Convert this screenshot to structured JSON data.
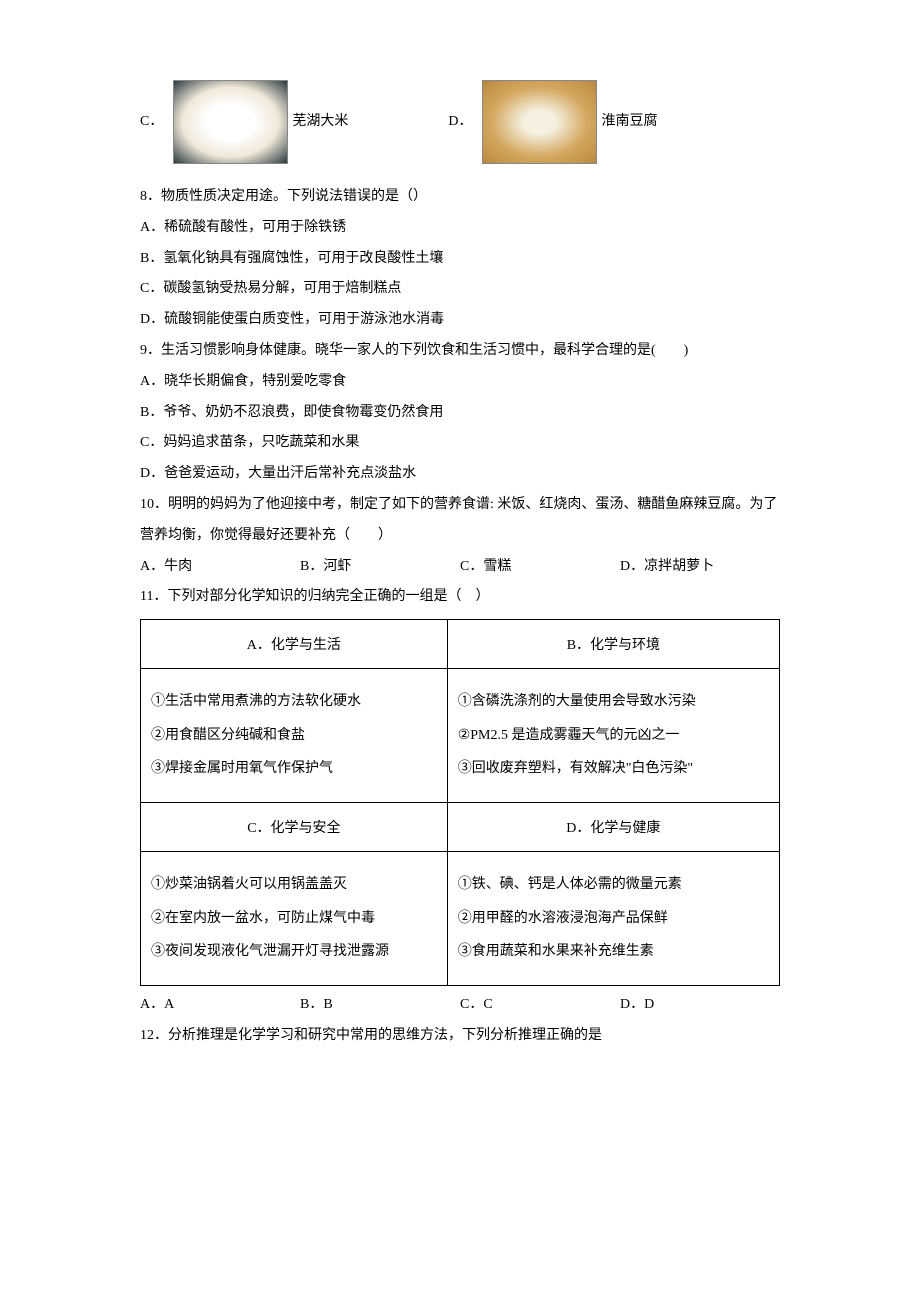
{
  "q7_options": {
    "c": {
      "label": "C．",
      "name": "芜湖大米"
    },
    "d": {
      "label": "D．",
      "name": "淮南豆腐"
    }
  },
  "q8": {
    "stem": "8．物质性质决定用途。下列说法错误的是（）",
    "a": "A．稀硫酸有酸性，可用于除铁锈",
    "b": "B．氢氧化钠具有强腐蚀性，可用于改良酸性土壤",
    "c": "C．碳酸氢钠受热易分解，可用于焙制糕点",
    "d": "D．硫酸铜能使蛋白质变性，可用于游泳池水消毒"
  },
  "q9": {
    "stem": "9．生活习惯影响身体健康。晓华一家人的下列饮食和生活习惯中，最科学合理的是(　　)",
    "a": "A．晓华长期偏食，特别爱吃零食",
    "b": "B．爷爷、奶奶不忍浪费，即使食物霉变仍然食用",
    "c": "C．妈妈追求苗条，只吃蔬菜和水果",
    "d": "D．爸爸爱运动，大量出汗后常补充点淡盐水"
  },
  "q10": {
    "stem": "10．明明的妈妈为了他迎接中考，制定了如下的营养食谱: 米饭、红烧肉、蛋汤、糖醋鱼麻辣豆腐。为了营养均衡，你觉得最好还要补充（　　）",
    "a": "A．牛肉",
    "b": "B．河虾",
    "c": "C．雪糕",
    "d": "D．凉拌胡萝卜"
  },
  "q11": {
    "stem": "11．下列对部分化学知识的归纳完全正确的一组是（　）",
    "table": {
      "headers": {
        "a": "A．化学与生活",
        "b": "B．化学与环境",
        "c": "C．化学与安全",
        "d": "D．化学与健康"
      },
      "cells": {
        "a1": "①生活中常用煮沸的方法软化硬水",
        "a2": "②用食醋区分纯碱和食盐",
        "a3": "③焊接金属时用氧气作保护气",
        "b1": "①含磷洗涤剂的大量使用会导致水污染",
        "b2": "②PM2.5 是造成雾霾天气的元凶之一",
        "b3": "③回收废弃塑料，有效解决\"白色污染\"",
        "c1": "①炒菜油锅着火可以用锅盖盖灭",
        "c2": "②在室内放一盆水，可防止煤气中毒",
        "c3": "③夜间发现液化气泄漏开灯寻找泄露源",
        "d1": "①铁、碘、钙是人体必需的微量元素",
        "d2": "②用甲醛的水溶液浸泡海产品保鲜",
        "d3": "③食用蔬菜和水果来补充维生素"
      }
    },
    "answers": {
      "a": "A．A",
      "b": "B．B",
      "c": "C．C",
      "d": "D．D"
    }
  },
  "q12": {
    "stem": "12．分析推理是化学学习和研究中常用的思维方法，下列分析推理正确的是"
  }
}
